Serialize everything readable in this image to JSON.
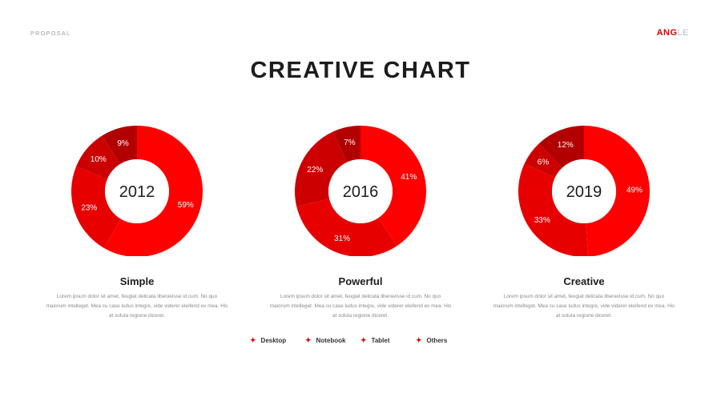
{
  "header": {
    "section": "PROPOSAL",
    "logo_primary": "ANG",
    "logo_secondary": "LE"
  },
  "title": "CREATIVE CHART",
  "colors": {
    "accent": "#e00000",
    "slices": [
      "#ff0000",
      "#e60000",
      "#cc0000",
      "#b20000"
    ]
  },
  "charts": [
    {
      "center_label": "2012",
      "caption": "Simple",
      "description_lines": [
        "Lorem ipsum dolor sit amet, feugiat delicata liberavisse id cum. No quo",
        "maiorum intelleget. Mea cu case ludus integre, vide viderer eleifend ex mea. His",
        "at soluta regione diceret."
      ]
    },
    {
      "center_label": "2016",
      "caption": "Powerful",
      "description_lines": [
        "Lorem ipsum dolor sit amet, feugiat delicata liberavisse id cum. No quo",
        "maiorum intelleget. Mea cu case ludus integre, vide viderer eleifend ex mea. His",
        "at soluta regione diceret."
      ]
    },
    {
      "center_label": "2019",
      "caption": "Creative",
      "description_lines": [
        "Lorem ipsum dolor sit amet, feugiat delicata liberavisse id cum. No quo",
        "maiorum intelleget. Mea cu case ludus integre, vide viderer eleifend ex mea. His",
        "at soluta regione diceret."
      ]
    }
  ],
  "legend": [
    "Desktop",
    "Notebook",
    "Tablet",
    "Others"
  ],
  "chart_data": [
    {
      "type": "pie",
      "title": "2012",
      "categories": [
        "Desktop",
        "Notebook",
        "Tablet",
        "Others"
      ],
      "values": [
        59,
        23,
        10,
        9
      ],
      "labels": [
        "59%",
        "23%",
        "10%",
        "9%"
      ]
    },
    {
      "type": "pie",
      "title": "2016",
      "categories": [
        "Desktop",
        "Notebook",
        "Tablet",
        "Others"
      ],
      "values": [
        41,
        31,
        22,
        7
      ],
      "labels": [
        "41%",
        "31%",
        "22%",
        "7%"
      ]
    },
    {
      "type": "pie",
      "title": "2019",
      "categories": [
        "Desktop",
        "Notebook",
        "Tablet",
        "Others"
      ],
      "values": [
        49,
        33,
        6,
        12
      ],
      "labels": [
        "49%",
        "33%",
        "6%",
        "12%"
      ]
    }
  ]
}
